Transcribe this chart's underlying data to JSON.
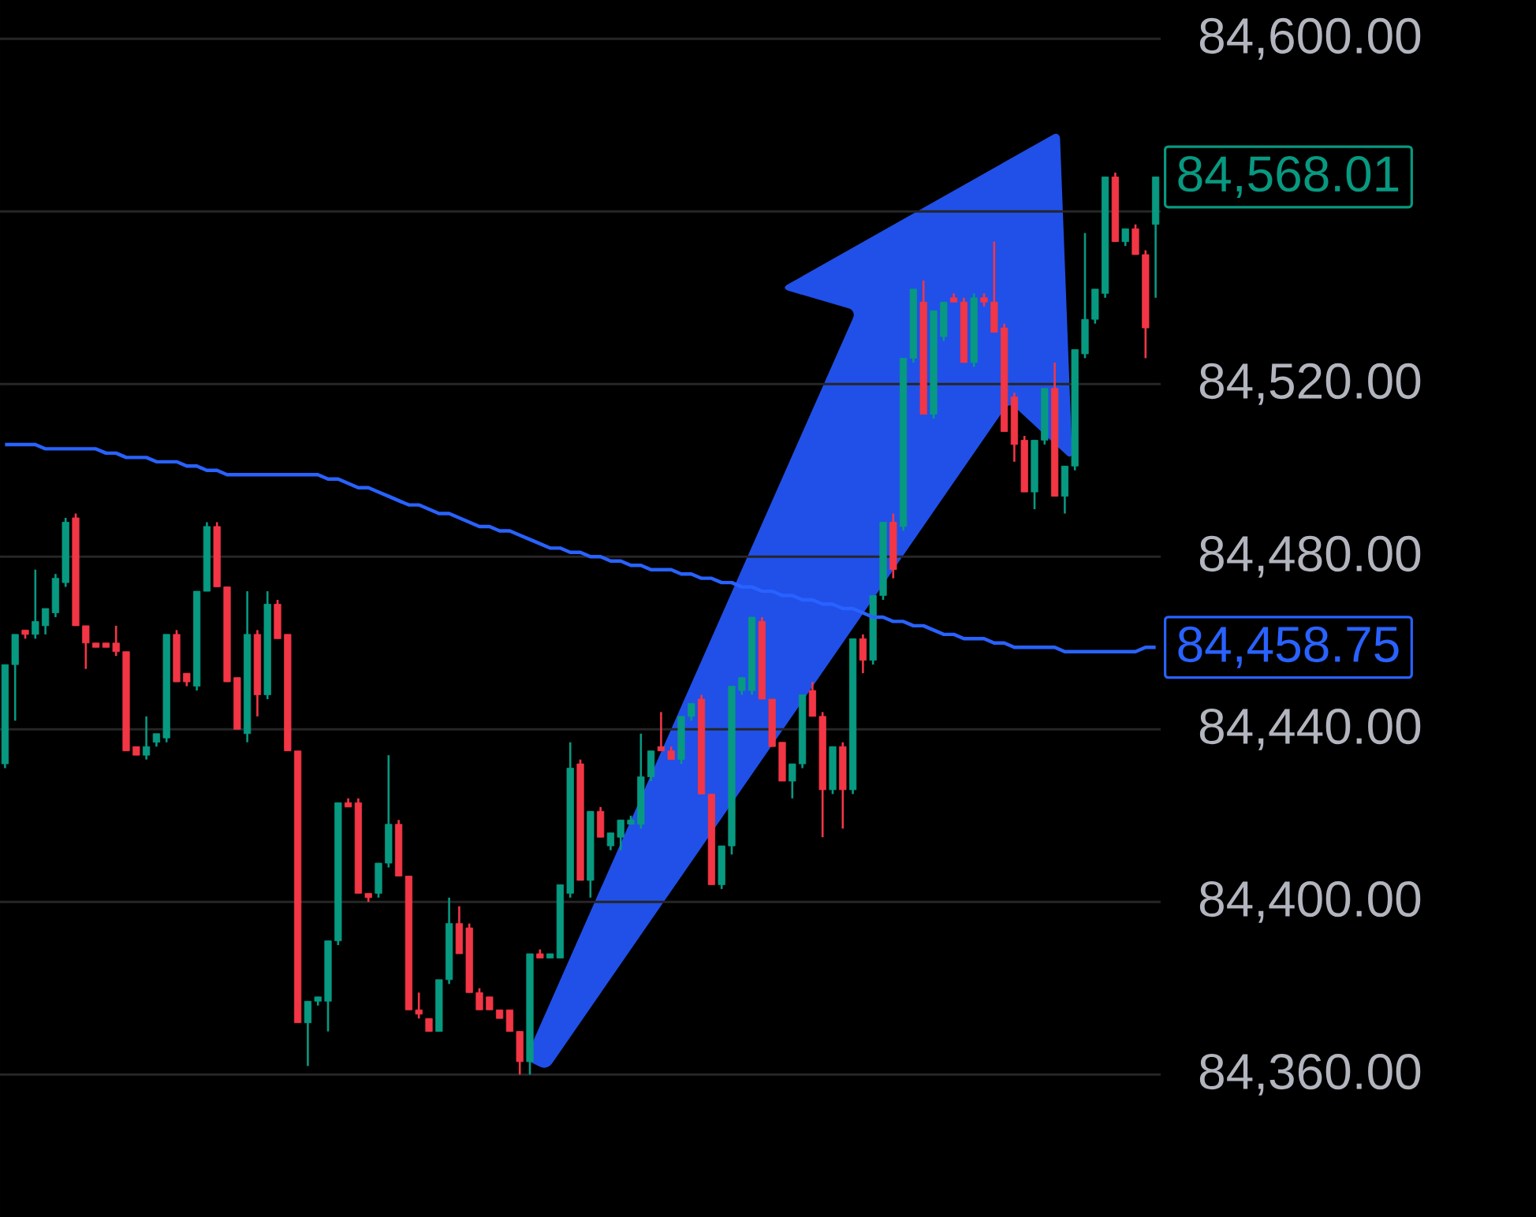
{
  "chart_data": {
    "type": "candlestick",
    "categories": [
      null,
      null,
      null,
      null,
      null,
      null,
      null,
      null,
      null,
      null,
      null,
      null,
      null,
      null,
      null,
      null,
      null,
      null,
      null,
      null,
      null,
      null,
      null,
      null,
      null,
      null,
      null,
      null,
      null,
      null,
      null,
      null,
      null,
      null,
      null,
      null,
      null,
      null,
      null,
      null,
      null,
      null,
      null,
      null,
      null,
      null,
      null,
      null,
      null,
      null,
      null,
      null,
      null,
      null,
      null,
      null,
      null,
      null,
      null,
      null,
      null,
      null,
      null,
      null,
      null,
      null,
      null,
      null,
      null,
      null,
      null,
      null,
      null,
      null,
      null,
      null,
      null,
      null,
      null,
      null,
      null,
      null,
      null,
      null,
      null,
      null,
      null,
      null,
      null,
      null,
      null,
      null,
      null,
      null,
      null,
      null,
      null,
      null,
      null,
      null,
      null,
      null,
      null,
      null,
      null,
      null,
      null,
      null,
      null,
      null,
      null,
      null,
      null,
      null,
      null
    ],
    "ohlc": [
      [
        84432,
        84455,
        84431,
        84455
      ],
      [
        84455,
        84462,
        84442,
        84462
      ],
      [
        84463,
        84463,
        84461,
        84462
      ],
      [
        84462,
        84477,
        84461,
        84465
      ],
      [
        84464,
        84468,
        84462,
        84468
      ],
      [
        84467,
        84476,
        84466,
        84475
      ],
      [
        84474,
        84489,
        84473,
        84488
      ],
      [
        84489,
        84490,
        84464,
        84464
      ],
      [
        84464,
        84464,
        84454,
        84460
      ],
      [
        84460,
        84460,
        84459,
        84459
      ],
      [
        84460,
        84460,
        84459,
        84459
      ],
      [
        84460,
        84464,
        84457,
        84458
      ],
      [
        84458,
        84458,
        84435,
        84435
      ],
      [
        84436,
        84436,
        84434,
        84434
      ],
      [
        84434,
        84443,
        84433,
        84436
      ],
      [
        84437,
        84439,
        84436,
        84439
      ],
      [
        84438,
        84462,
        84437,
        84462
      ],
      [
        84462,
        84463,
        84451,
        84451
      ],
      [
        84453,
        84453,
        84450,
        84451
      ],
      [
        84450,
        84472,
        84449,
        84472
      ],
      [
        84472,
        84488,
        84472,
        84487
      ],
      [
        84487,
        84488,
        84473,
        84473
      ],
      [
        84473,
        84473,
        84451,
        84451
      ],
      [
        84452,
        84452,
        84440,
        84440
      ],
      [
        84439,
        84472,
        84437,
        84462
      ],
      [
        84462,
        84463,
        84443,
        84448
      ],
      [
        84448,
        84472,
        84447,
        84469
      ],
      [
        84469,
        84470,
        84461,
        84461
      ],
      [
        84462,
        84462,
        84435,
        84435
      ],
      [
        84435,
        84435,
        84372,
        84372
      ],
      [
        84372,
        84377,
        84362,
        84377
      ],
      [
        84377,
        84378,
        84376,
        84378
      ],
      [
        84377,
        84391,
        84370,
        84391
      ],
      [
        84391,
        84423,
        84390,
        84423
      ],
      [
        84423,
        84424,
        84422,
        84422
      ],
      [
        84423,
        84424,
        84402,
        84402
      ],
      [
        84402,
        84402,
        84400,
        84401
      ],
      [
        84402,
        84409,
        84401,
        84409
      ],
      [
        84409,
        84434,
        84408,
        84418
      ],
      [
        84418,
        84419,
        84406,
        84406
      ],
      [
        84406,
        84406,
        84375,
        84375
      ],
      [
        84375,
        84379,
        84373,
        84374
      ],
      [
        84373,
        84373,
        84370,
        84370
      ],
      [
        84370,
        84382,
        84370,
        84382
      ],
      [
        84382,
        84401,
        84381,
        84395
      ],
      [
        84395,
        84399,
        84388,
        84388
      ],
      [
        84394,
        84395,
        84379,
        84379
      ],
      [
        84379,
        84380,
        84375,
        84375
      ],
      [
        84378,
        84378,
        84375,
        84375
      ],
      [
        84375,
        84375,
        84373,
        84373
      ],
      [
        84375,
        84375,
        84370,
        84370
      ],
      [
        84370,
        84370,
        84360,
        84363
      ],
      [
        84363,
        84388,
        84360,
        84388
      ],
      [
        84388,
        84389,
        84387,
        84387
      ],
      [
        84387,
        84388,
        84387,
        84388
      ],
      [
        84387,
        84404,
        84387,
        84404
      ],
      [
        84402,
        84437,
        84401,
        84431
      ],
      [
        84432,
        84433,
        84405,
        84405
      ],
      [
        84405,
        84421,
        84401,
        84421
      ],
      [
        84421,
        84422,
        84415,
        84415
      ],
      [
        84413,
        84416,
        84412,
        84416
      ],
      [
        84415,
        84419,
        84412,
        84419
      ],
      [
        84418,
        84420,
        84418,
        84419
      ],
      [
        84418,
        84439,
        84417,
        84429
      ],
      [
        84429,
        84435,
        84428,
        84435
      ],
      [
        84436,
        84444,
        84435,
        84435
      ],
      [
        84435,
        84436,
        84433,
        84433
      ],
      [
        84433,
        84443,
        84432,
        84443
      ],
      [
        84443,
        84446,
        84442,
        84446
      ],
      [
        84447,
        84448,
        84425,
        84425
      ],
      [
        84425,
        84425,
        84404,
        84404
      ],
      [
        84404,
        84413,
        84403,
        84413
      ],
      [
        84413,
        84450,
        84411,
        84450
      ],
      [
        84449,
        84452,
        84448,
        84452
      ],
      [
        84449,
        84466,
        84448,
        84466
      ],
      [
        84465,
        84466,
        84447,
        84447
      ],
      [
        84447,
        84447,
        84436,
        84436
      ],
      [
        84437,
        84437,
        84428,
        84428
      ],
      [
        84428,
        84432,
        84424,
        84432
      ],
      [
        84432,
        84448,
        84431,
        84448
      ],
      [
        84449,
        84451,
        84443,
        84443
      ],
      [
        84443,
        84444,
        84415,
        84426
      ],
      [
        84426,
        84436,
        84425,
        84436
      ],
      [
        84436,
        84437,
        84417,
        84426
      ],
      [
        84426,
        84461,
        84425,
        84461
      ],
      [
        84461,
        84462,
        84453,
        84456
      ],
      [
        84456,
        84471,
        84455,
        84471
      ],
      [
        84471,
        84488,
        84470,
        84488
      ],
      [
        84488,
        84490,
        84475,
        84477
      ],
      [
        84487,
        84526,
        84486,
        84526
      ],
      [
        84526,
        84542,
        84525,
        84542
      ],
      [
        84539,
        84544,
        84513,
        84513
      ],
      [
        84513,
        84537,
        84512,
        84537
      ],
      [
        84531,
        84539,
        84530,
        84539
      ],
      [
        84540,
        84541,
        84539,
        84539
      ],
      [
        84539,
        84540,
        84525,
        84525
      ],
      [
        84525,
        84541,
        84524,
        84540
      ],
      [
        84540,
        84541,
        84538,
        84539
      ],
      [
        84539,
        84553,
        84532,
        84532
      ],
      [
        84533,
        84534,
        84509,
        84509
      ],
      [
        84517,
        84518,
        84502,
        84506
      ],
      [
        84507,
        84508,
        84495,
        84495
      ],
      [
        84495,
        84507,
        84491,
        84507
      ],
      [
        84507,
        84519,
        84506,
        84519
      ],
      [
        84519,
        84525,
        84494,
        84494
      ],
      [
        84494,
        84501,
        84490,
        84501
      ],
      [
        84501,
        84528,
        84500,
        84528
      ],
      [
        84527,
        84555,
        84526,
        84535
      ],
      [
        84535,
        84542,
        84534,
        84542
      ],
      [
        84541,
        84568,
        84540,
        84568
      ],
      [
        84568,
        84569,
        84553,
        84553
      ],
      [
        84553,
        84556,
        84552,
        84556
      ],
      [
        84556,
        84557,
        84550,
        84550
      ],
      [
        84550,
        84551,
        84526,
        84533
      ],
      [
        84557,
        84568,
        84540,
        84568
      ]
    ],
    "colors": [
      "#089981",
      "#089981",
      "#f23645",
      "#089981",
      "#089981",
      "#089981",
      "#089981",
      "#f23645",
      "#f23645",
      "#f23645",
      "#f23645",
      "#f23645",
      "#f23645",
      "#f23645",
      "#089981",
      "#089981",
      "#089981",
      "#f23645",
      "#f23645",
      "#089981",
      "#089981",
      "#f23645",
      "#f23645",
      "#f23645",
      "#089981",
      "#f23645",
      "#089981",
      "#f23645",
      "#f23645",
      "#f23645",
      "#089981",
      "#089981",
      "#089981",
      "#089981",
      "#f23645",
      "#f23645",
      "#f23645",
      "#089981",
      "#089981",
      "#f23645",
      "#f23645",
      "#f23645",
      "#f23645",
      "#089981",
      "#089981",
      "#f23645",
      "#f23645",
      "#f23645",
      "#f23645",
      "#f23645",
      "#f23645",
      "#f23645",
      "#089981",
      "#f23645",
      "#089981",
      "#089981",
      "#089981",
      "#f23645",
      "#089981",
      "#f23645",
      "#089981",
      "#089981",
      "#089981",
      "#089981",
      "#089981",
      "#f23645",
      "#f23645",
      "#089981",
      "#089981",
      "#f23645",
      "#f23645",
      "#089981",
      "#089981",
      "#089981",
      "#089981",
      "#f23645",
      "#f23645",
      "#f23645",
      "#089981",
      "#089981",
      "#f23645",
      "#f23645",
      "#089981",
      "#f23645",
      "#089981",
      "#f23645",
      "#089981",
      "#089981",
      "#f23645",
      "#089981",
      "#089981",
      "#f23645",
      "#089981",
      "#089981",
      "#f23645",
      "#f23645",
      "#089981",
      "#f23645",
      "#f23645",
      "#f23645",
      "#f23645",
      "#f23645",
      "#089981",
      "#089981",
      "#f23645",
      "#089981",
      "#089981",
      "#089981",
      "#089981",
      "#089981",
      "#f23645",
      "#089981",
      "#f23645",
      "#f23645",
      "#089981"
    ],
    "series": [
      {
        "type": "line",
        "color": "#2962ff",
        "values": [
          84506,
          84506,
          84506,
          84506,
          84505,
          84505,
          84505,
          84505,
          84505,
          84505,
          84504,
          84504,
          84503,
          84503,
          84503,
          84502,
          84502,
          84502,
          84501,
          84501,
          84500,
          84500,
          84499,
          84499,
          84499,
          84499,
          84499,
          84499,
          84499,
          84499,
          84499,
          84499,
          84498,
          84498,
          84497,
          84496,
          84496,
          84495,
          84494,
          84493,
          84492,
          84492,
          84491,
          84490,
          84490,
          84489,
          84488,
          84487,
          84487,
          84486,
          84486,
          84485,
          84484,
          84483,
          84482,
          84482,
          84481,
          84481,
          84480,
          84480,
          84479,
          84479,
          84478,
          84478,
          84477,
          84477,
          84477,
          84476,
          84476,
          84475,
          84475,
          84474,
          84474,
          84473,
          84473,
          84472,
          84472,
          84471,
          84471,
          84470,
          84470,
          84469,
          84469,
          84468,
          84468,
          84467,
          84466,
          84466,
          84465,
          84465,
          84464,
          84464,
          84463,
          84462,
          84462,
          84461,
          84461,
          84461,
          84460,
          84460,
          84459,
          84459,
          84459,
          84459,
          84459,
          84458,
          84458,
          84458,
          84458,
          84458,
          84458,
          84458,
          84458,
          84459,
          84459
        ]
      }
    ],
    "ylim": [
      84327,
      84609
    ],
    "yticks": [
      {
        "value": 84360,
        "label": "84,360.00"
      },
      {
        "value": 84400,
        "label": "84,400.00"
      },
      {
        "value": 84440,
        "label": "84,440.00"
      },
      {
        "value": 84480,
        "label": "84,480.00"
      },
      {
        "value": 84520,
        "label": "84,520.00"
      },
      {
        "value": 84560,
        "label": null
      },
      {
        "value": 84600,
        "label": "84,600.00"
      }
    ],
    "grid": "y",
    "annotations": [
      "84,568.01",
      "84,458.75"
    ]
  }
}
